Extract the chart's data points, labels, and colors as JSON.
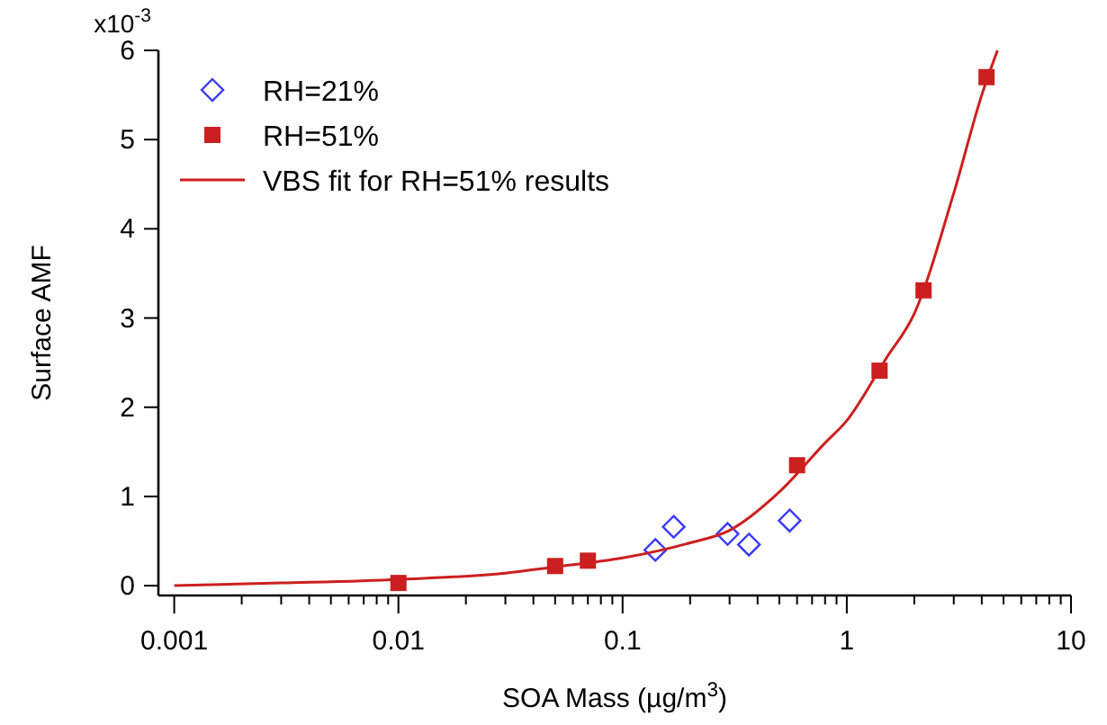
{
  "chart_data": {
    "type": "scatter",
    "xlabel": "SOA Mass (µg/m$^{3}$)",
    "ylabel": "Surface AMF",
    "log": "x",
    "legend": "top left",
    "grid": false,
    "annotations": [
      "x10$^{-3}$"
    ],
    "xlim": [
      0.00085,
      10
    ],
    "ylim": [
      -0.11,
      6
    ],
    "xticks": [
      0.001,
      {
        "value": 0.002,
        "label": null
      },
      {
        "value": 0.003,
        "label": null
      },
      {
        "value": 0.004,
        "label": null
      },
      {
        "value": 0.005,
        "label": null
      },
      {
        "value": 0.006,
        "label": null
      },
      {
        "value": 0.007,
        "label": null
      },
      {
        "value": 0.008,
        "label": null
      },
      {
        "value": 0.009,
        "label": null
      },
      0.01,
      {
        "value": 0.02,
        "label": null
      },
      {
        "value": 0.03,
        "label": null
      },
      {
        "value": 0.04,
        "label": null
      },
      {
        "value": 0.05,
        "label": null
      },
      {
        "value": 0.06,
        "label": null
      },
      {
        "value": 0.07,
        "label": null
      },
      {
        "value": 0.08,
        "label": null
      },
      {
        "value": 0.09,
        "label": null
      },
      0.1,
      {
        "value": 0.2,
        "label": null
      },
      {
        "value": 0.3,
        "label": null
      },
      {
        "value": 0.4,
        "label": null
      },
      {
        "value": 0.5,
        "label": null
      },
      {
        "value": 0.6,
        "label": null
      },
      {
        "value": 0.7,
        "label": null
      },
      {
        "value": 0.8,
        "label": null
      },
      {
        "value": 0.9,
        "label": null
      },
      1,
      {
        "value": 2,
        "label": null
      },
      {
        "value": 3,
        "label": null
      },
      {
        "value": 4,
        "label": null
      },
      {
        "value": 5,
        "label": null
      },
      {
        "value": 6,
        "label": null
      },
      {
        "value": 7,
        "label": null
      },
      {
        "value": 8,
        "label": null
      },
      {
        "value": 9,
        "label": null
      },
      10
    ],
    "yticks": [
      0,
      1,
      2,
      3,
      4,
      5,
      6
    ],
    "series": [
      {
        "name": "RH=21%",
        "marker": "diamond",
        "color": "#3a3aff",
        "x": [
          0.14,
          0.169,
          0.294,
          0.366,
          0.556
        ],
        "values": [
          0.4,
          0.66,
          0.58,
          0.46,
          0.73
        ]
      },
      {
        "name": "RH=51%",
        "marker": "square",
        "color": "#cc1f1f",
        "x": [
          0.01,
          0.05,
          0.07,
          0.6,
          1.4,
          2.2,
          4.2
        ],
        "values": [
          0.03,
          0.22,
          0.28,
          1.35,
          2.41,
          3.31,
          5.7
        ]
      },
      {
        "name": "VBS fit for RH=51% results",
        "type": "line",
        "marker": "none",
        "line_style": "solid",
        "color": "#cc1f1f",
        "x": [
          0.001,
          0.003,
          0.01,
          0.03,
          0.05,
          0.1,
          0.2,
          0.3,
          0.5,
          0.8,
          1,
          1.5,
          2,
          3,
          4,
          4.7
        ],
        "values": [
          0.0,
          0.03,
          0.07,
          0.14,
          0.21,
          0.31,
          0.48,
          0.62,
          1.05,
          1.6,
          1.85,
          2.55,
          3.05,
          4.4,
          5.5,
          6.0
        ]
      }
    ]
  }
}
